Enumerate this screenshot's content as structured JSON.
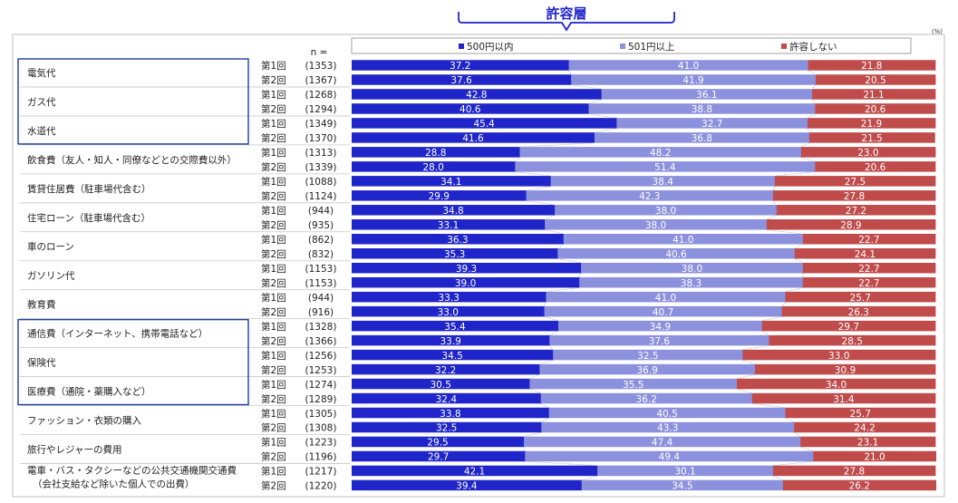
{
  "chart_data": {
    "type": "bar",
    "stacked": true,
    "orientation": "horizontal",
    "normalized": true,
    "bracket_label": "許容層",
    "unit_label": "(%)",
    "n_header": "n =",
    "legend_position": "top",
    "series": [
      {
        "name": "500円以内",
        "color": "#1F25C8"
      },
      {
        "name": "501円以上",
        "color": "#8C91DE"
      },
      {
        "name": "許容しない",
        "color": "#BF4B4B"
      }
    ],
    "group_box_color": "#1F3D9E",
    "groups": [
      {
        "name": "電気代",
        "boxed": true,
        "rows": [
          {
            "round": "第1回",
            "n": "(1353)",
            "values": [
              37.2,
              41.0,
              21.8
            ]
          },
          {
            "round": "第2回",
            "n": "(1367)",
            "values": [
              37.6,
              41.9,
              20.5
            ]
          }
        ]
      },
      {
        "name": "ガス代",
        "boxed": true,
        "rows": [
          {
            "round": "第1回",
            "n": "(1268)",
            "values": [
              42.8,
              36.1,
              21.1
            ]
          },
          {
            "round": "第2回",
            "n": "(1294)",
            "values": [
              40.6,
              38.8,
              20.6
            ]
          }
        ]
      },
      {
        "name": "水道代",
        "boxed": true,
        "rows": [
          {
            "round": "第1回",
            "n": "(1349)",
            "values": [
              45.4,
              32.7,
              21.9
            ]
          },
          {
            "round": "第2回",
            "n": "(1370)",
            "values": [
              41.6,
              36.8,
              21.5
            ]
          }
        ]
      },
      {
        "name": "飲食費（友人・知人・同僚などとの交際費以外）",
        "boxed": false,
        "rows": [
          {
            "round": "第1回",
            "n": "(1313)",
            "values": [
              28.8,
              48.2,
              23.0
            ]
          },
          {
            "round": "第2回",
            "n": "(1339)",
            "values": [
              28.0,
              51.4,
              20.6
            ]
          }
        ]
      },
      {
        "name": "賃貸住居費（駐車場代含む）",
        "boxed": false,
        "rows": [
          {
            "round": "第1回",
            "n": "(1088)",
            "values": [
              34.1,
              38.4,
              27.5
            ]
          },
          {
            "round": "第2回",
            "n": "(1124)",
            "values": [
              29.9,
              42.3,
              27.8
            ]
          }
        ]
      },
      {
        "name": "住宅ローン（駐車場代含む）",
        "boxed": false,
        "rows": [
          {
            "round": "第1回",
            "n": "(944)",
            "values": [
              34.8,
              38.0,
              27.2
            ]
          },
          {
            "round": "第2回",
            "n": "(935)",
            "values": [
              33.1,
              38.0,
              28.9
            ]
          }
        ]
      },
      {
        "name": "車のローン",
        "boxed": false,
        "rows": [
          {
            "round": "第1回",
            "n": "(862)",
            "values": [
              36.3,
              41.0,
              22.7
            ]
          },
          {
            "round": "第2回",
            "n": "(832)",
            "values": [
              35.3,
              40.6,
              24.1
            ]
          }
        ]
      },
      {
        "name": "ガソリン代",
        "boxed": false,
        "rows": [
          {
            "round": "第1回",
            "n": "(1153)",
            "values": [
              39.3,
              38.0,
              22.7
            ]
          },
          {
            "round": "第2回",
            "n": "(1153)",
            "values": [
              39.0,
              38.3,
              22.7
            ]
          }
        ]
      },
      {
        "name": "教育費",
        "boxed": false,
        "rows": [
          {
            "round": "第1回",
            "n": "(944)",
            "values": [
              33.3,
              41.0,
              25.7
            ]
          },
          {
            "round": "第2回",
            "n": "(916)",
            "values": [
              33.0,
              40.7,
              26.3
            ]
          }
        ]
      },
      {
        "name": "通信費（インターネット、携帯電話など）",
        "boxed": true,
        "rows": [
          {
            "round": "第1回",
            "n": "(1328)",
            "values": [
              35.4,
              34.9,
              29.7
            ]
          },
          {
            "round": "第2回",
            "n": "(1366)",
            "values": [
              33.9,
              37.6,
              28.5
            ]
          }
        ]
      },
      {
        "name": "保険代",
        "boxed": true,
        "rows": [
          {
            "round": "第1回",
            "n": "(1256)",
            "values": [
              34.5,
              32.5,
              33.0
            ]
          },
          {
            "round": "第2回",
            "n": "(1253)",
            "values": [
              32.2,
              36.9,
              30.9
            ]
          }
        ]
      },
      {
        "name": "医療費（通院・薬購入など）",
        "boxed": true,
        "rows": [
          {
            "round": "第1回",
            "n": "(1274)",
            "values": [
              30.5,
              35.5,
              34.0
            ]
          },
          {
            "round": "第2回",
            "n": "(1289)",
            "values": [
              32.4,
              36.2,
              31.4
            ]
          }
        ]
      },
      {
        "name": "ファッション・衣類の購入",
        "boxed": false,
        "rows": [
          {
            "round": "第1回",
            "n": "(1305)",
            "values": [
              33.8,
              40.5,
              25.7
            ]
          },
          {
            "round": "第2回",
            "n": "(1308)",
            "values": [
              32.5,
              43.3,
              24.2
            ]
          }
        ]
      },
      {
        "name": "旅行やレジャーの費用",
        "boxed": false,
        "rows": [
          {
            "round": "第1回",
            "n": "(1223)",
            "values": [
              29.5,
              47.4,
              23.1
            ]
          },
          {
            "round": "第2回",
            "n": "(1196)",
            "values": [
              29.7,
              49.4,
              21.0
            ]
          }
        ]
      },
      {
        "name": "電車・バス・タクシーなどの公共交通機関交通費",
        "name_line2": "（会社支給など除いた個人での出費）",
        "boxed": false,
        "rows": [
          {
            "round": "第1回",
            "n": "(1217)",
            "values": [
              42.1,
              30.1,
              27.8
            ]
          },
          {
            "round": "第2回",
            "n": "(1220)",
            "values": [
              39.4,
              34.5,
              26.2
            ]
          }
        ]
      }
    ]
  }
}
